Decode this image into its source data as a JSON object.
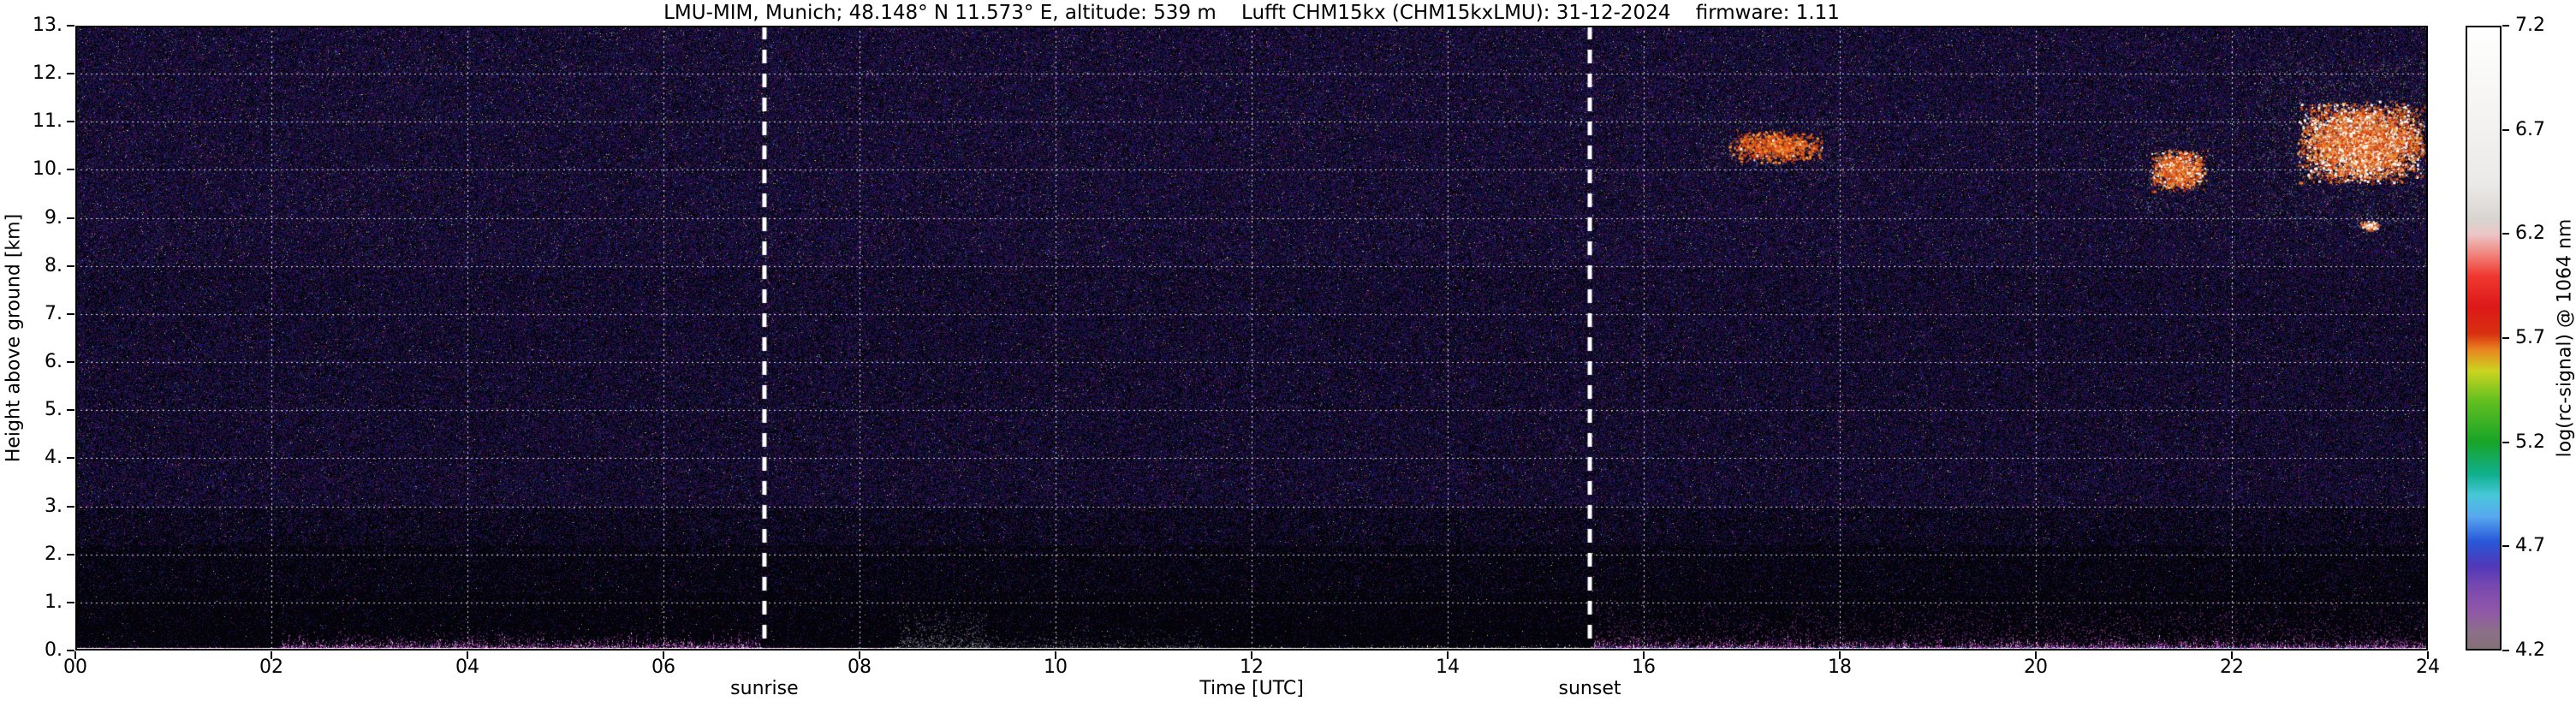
{
  "chart_data": {
    "type": "heatmap",
    "title": "LMU-MIM, Munich; 48.148° N 11.573° E, altitude: 539 m    Lufft CHM15kx (CHM15kxLMU): 31-12-2024    firmware: 1.11",
    "xlabel": "Time [UTC]",
    "ylabel": "Height above ground [km]",
    "x_range_hours": [
      0,
      24
    ],
    "y_range_km": [
      0,
      13
    ],
    "x_ticks": [
      "00",
      "02",
      "04",
      "06",
      "08",
      "10",
      "12",
      "14",
      "16",
      "18",
      "20",
      "22",
      "24"
    ],
    "y_ticks": [
      "0.",
      "1.",
      "2.",
      "3.",
      "4.",
      "5.",
      "6.",
      "7.",
      "8.",
      "9.",
      "10.",
      "11.",
      "12.",
      "13."
    ],
    "grid": {
      "x_step_hours": 2,
      "y_step_km": 1,
      "style": "white dotted"
    },
    "annotations": [
      {
        "label": "sunrise",
        "time_utc": 7.03
      },
      {
        "label": "sunset",
        "time_utc": 15.45
      }
    ],
    "colorbar": {
      "label": "log(rc-signal) @ 1064 nm",
      "range": [
        4.2,
        7.2
      ],
      "ticks": [
        "7.2",
        "6.7",
        "6.2",
        "5.7",
        "5.2",
        "4.7",
        "4.2"
      ],
      "stops": [
        {
          "v": 7.2,
          "c": "#ffffff"
        },
        {
          "v": 6.45,
          "c": "#eceae8"
        },
        {
          "v": 6.27,
          "c": "#d8d4d0"
        },
        {
          "v": 6.2,
          "c": "#ecc6c6"
        },
        {
          "v": 6.1,
          "c": "#f08078"
        },
        {
          "v": 6.0,
          "c": "#f03830"
        },
        {
          "v": 5.85,
          "c": "#dc1818"
        },
        {
          "v": 5.72,
          "c": "#d83010"
        },
        {
          "v": 5.64,
          "c": "#e88820"
        },
        {
          "v": 5.54,
          "c": "#ccd420"
        },
        {
          "v": 5.4,
          "c": "#64c020"
        },
        {
          "v": 5.2,
          "c": "#18a428"
        },
        {
          "v": 5.04,
          "c": "#10b090"
        },
        {
          "v": 4.94,
          "c": "#48c8d8"
        },
        {
          "v": 4.84,
          "c": "#58a8f0"
        },
        {
          "v": 4.72,
          "c": "#2858d8"
        },
        {
          "v": 4.6,
          "c": "#5038b8"
        },
        {
          "v": 4.5,
          "c": "#7848b0"
        },
        {
          "v": 4.38,
          "c": "#9058a8"
        },
        {
          "v": 4.28,
          "c": "#8c7088"
        },
        {
          "v": 4.2,
          "c": "#837078"
        }
      ]
    },
    "features": {
      "background_noise": {
        "description": "dense dark blue/purple speckle noise, denser and brighter with height; mostly black below 2 km",
        "bright_colors": [
          "#50b878",
          "#58c8c8",
          "#d8d8d8",
          "#e09040",
          "#c05050",
          "#b060b0",
          "#d8d870"
        ]
      },
      "clouds": [
        {
          "t0": 16.85,
          "t1": 17.85,
          "z0": 10.15,
          "z1": 10.85,
          "density": 0.3,
          "white": 0.05
        },
        {
          "t0": 21.15,
          "t1": 21.75,
          "z0": 9.55,
          "z1": 10.45,
          "density": 0.45,
          "white": 0.18
        },
        {
          "t0": 22.65,
          "t1": 24.0,
          "z0": 9.7,
          "z1": 11.45,
          "density": 0.5,
          "white": 0.28
        },
        {
          "t0": 23.3,
          "t1": 23.5,
          "z0": 8.75,
          "z1": 8.95,
          "density": 0.6,
          "white": 0.5
        }
      ],
      "boundary_layer": {
        "segments": [
          {
            "t0": 0.0,
            "t1": 2.1,
            "top_km": 0.1,
            "density": 0.3,
            "palette": [
              "#c040c0",
              "#803080",
              "#ff80ff"
            ],
            "base": "white"
          },
          {
            "t0": 2.1,
            "t1": 7.0,
            "top_km": 0.3,
            "density": 0.55,
            "palette": [
              "#d050d0",
              "#a040a0",
              "#ff90ff",
              "#ffffff",
              "#8030a0"
            ],
            "base": "white"
          },
          {
            "t0": 7.0,
            "t1": 8.3,
            "top_km": 0.08,
            "density": 0.25,
            "palette": [
              "#b040b0",
              "#703070"
            ],
            "base": "white"
          },
          {
            "t0": 8.3,
            "t1": 15.5,
            "top_km": 0.12,
            "density": 0.4,
            "palette": [
              "#c8c8c8",
              "#a0a0a0",
              "#d080d0",
              "#ffffff"
            ],
            "base": "white-green"
          },
          {
            "t0": 15.5,
            "t1": 24.0,
            "top_km": 0.25,
            "density": 0.7,
            "palette": [
              "#e060e0",
              "#b030b0",
              "#ff80ff",
              "#8030a0",
              "#ffffff"
            ],
            "base": "white-cyan"
          }
        ]
      },
      "plumes": [
        {
          "t0": 8.4,
          "t1": 9.3,
          "z_top": 1.0,
          "density": 0.1,
          "palette": [
            "#909098",
            "#b0b0b8",
            "#707078"
          ]
        },
        {
          "t0": 9.3,
          "t1": 11.5,
          "z_top": 0.5,
          "density": 0.06,
          "palette": [
            "#8888a0",
            "#606070"
          ]
        },
        {
          "t0": 15.5,
          "t1": 24.0,
          "z_top": 1.3,
          "density": 0.05,
          "palette": [
            "#b050b0",
            "#803080",
            "#a04898"
          ]
        },
        {
          "t0": 2.1,
          "t1": 7.0,
          "z_top": 0.55,
          "density": 0.05,
          "palette": [
            "#c050c0",
            "#903890"
          ]
        }
      ]
    }
  }
}
